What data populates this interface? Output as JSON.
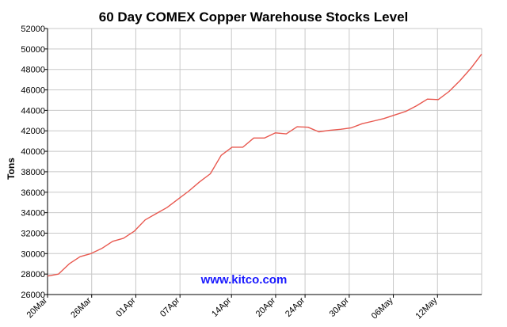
{
  "chart_data": {
    "type": "line",
    "title": "60 Day COMEX Copper Warehouse Stocks Level",
    "ylabel": "Tons",
    "xlabel": "",
    "ylim": [
      26000,
      52000
    ],
    "ytick_step": 2000,
    "grid": true,
    "legend": "none",
    "watermark": "www.kitco.com",
    "colors": {
      "line": "#e8584f",
      "grid": "#c8c8c8",
      "axis": "#000000",
      "watermark": "#1a1aff"
    },
    "xticks": [
      {
        "label": "20Mar",
        "x": 0
      },
      {
        "label": "26Mar",
        "x": 6
      },
      {
        "label": "01Apr",
        "x": 12
      },
      {
        "label": "07Apr",
        "x": 18
      },
      {
        "label": "14Apr",
        "x": 25
      },
      {
        "label": "20Apr",
        "x": 31
      },
      {
        "label": "24Apr",
        "x": 35
      },
      {
        "label": "30Apr",
        "x": 41
      },
      {
        "label": "06May",
        "x": 47
      },
      {
        "label": "12May",
        "x": 53
      }
    ],
    "xlim": [
      0,
      59
    ],
    "series": [
      {
        "points": [
          [
            0,
            27800
          ],
          [
            1,
            28000
          ],
          [
            2,
            29000
          ],
          [
            3,
            29700
          ],
          [
            4,
            30000
          ],
          [
            5,
            30500
          ],
          [
            6,
            31200
          ],
          [
            7,
            31500
          ],
          [
            8,
            32200
          ],
          [
            9,
            33300
          ],
          [
            10,
            33900
          ],
          [
            11,
            34500
          ],
          [
            12,
            35300
          ],
          [
            13,
            36100
          ],
          [
            14,
            37000
          ],
          [
            15,
            37800
          ],
          [
            16,
            39600
          ],
          [
            17,
            40400
          ],
          [
            18,
            40400
          ],
          [
            19,
            41300
          ],
          [
            20,
            41300
          ],
          [
            21,
            41800
          ],
          [
            22,
            41700
          ],
          [
            23,
            42400
          ],
          [
            24,
            42350
          ],
          [
            25,
            41900
          ],
          [
            26,
            42050
          ],
          [
            27,
            42150
          ],
          [
            28,
            42300
          ],
          [
            29,
            42700
          ],
          [
            30,
            42950
          ],
          [
            31,
            43200
          ],
          [
            32,
            43550
          ],
          [
            33,
            43900
          ],
          [
            34,
            44450
          ],
          [
            35,
            45100
          ],
          [
            36,
            45050
          ],
          [
            37,
            45850
          ],
          [
            38,
            46900
          ],
          [
            39,
            48100
          ],
          [
            40,
            49500
          ]
        ],
        "x_positions": [
          0,
          1,
          2,
          3,
          4,
          5,
          6,
          7,
          8,
          9,
          10,
          11,
          12,
          13,
          14,
          15,
          16,
          17,
          18,
          19,
          20,
          21,
          22,
          23,
          24,
          25,
          26,
          27,
          28,
          29,
          30,
          31,
          32,
          33,
          34,
          35,
          36,
          37,
          38,
          39,
          40
        ]
      }
    ]
  }
}
